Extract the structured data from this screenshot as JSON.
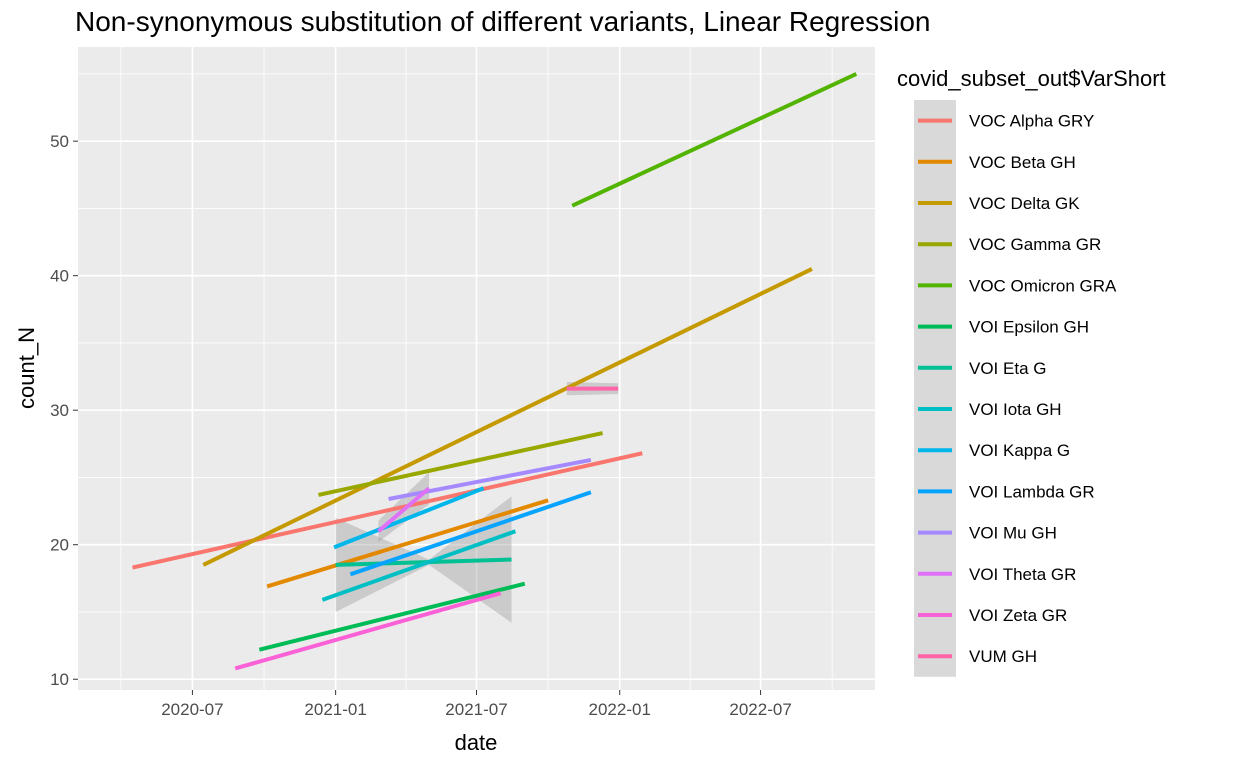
{
  "chart_data": {
    "type": "line",
    "title": "Non-synonymous substitution of different variants, Linear Regression",
    "xlabel": "date",
    "ylabel": "count_N",
    "x_ticks": [
      "2020-07",
      "2021-01",
      "2021-07",
      "2022-01",
      "2022-07"
    ],
    "y_ticks": [
      10,
      20,
      30,
      40,
      50
    ],
    "xlim": [
      "2020-02-05",
      "2022-11-25"
    ],
    "ylim": [
      9.2,
      57.0
    ],
    "grid": true,
    "legend": {
      "title": "covid_subset_out$VarShort",
      "position": "right"
    },
    "series": [
      {
        "name": "VOC Alpha GRY",
        "color": "#F8766D",
        "x": [
          "2020-04-15",
          "2022-01-30"
        ],
        "y": [
          18.3,
          26.8
        ]
      },
      {
        "name": "VOC Beta GH",
        "color": "#E38900",
        "x": [
          "2020-10-05",
          "2021-10-01"
        ],
        "y": [
          16.9,
          23.3
        ]
      },
      {
        "name": "VOC Delta GK",
        "color": "#C49A00",
        "x": [
          "2020-07-15",
          "2022-09-05"
        ],
        "y": [
          18.5,
          40.5
        ]
      },
      {
        "name": "VOC Gamma GR",
        "color": "#99A800",
        "x": [
          "2020-12-10",
          "2021-12-10"
        ],
        "y": [
          23.7,
          28.3
        ]
      },
      {
        "name": "VOC Omicron GRA",
        "color": "#53B400",
        "x": [
          "2021-11-01",
          "2022-11-01"
        ],
        "y": [
          45.2,
          55.0
        ]
      },
      {
        "name": "VOI Epsilon GH",
        "color": "#00BC56",
        "x": [
          "2020-09-25",
          "2021-09-01"
        ],
        "y": [
          12.2,
          17.1
        ]
      },
      {
        "name": "VOI Eta G",
        "color": "#00C094",
        "x": [
          "2021-01-01",
          "2021-08-15"
        ],
        "y": [
          18.5,
          18.9
        ]
      },
      {
        "name": "VOI Iota GH",
        "color": "#00BFC4",
        "x": [
          "2020-12-15",
          "2021-08-20"
        ],
        "y": [
          15.9,
          21.0
        ]
      },
      {
        "name": "VOI Kappa G",
        "color": "#00B6EB",
        "x": [
          "2020-12-30",
          "2021-07-10"
        ],
        "y": [
          19.8,
          24.2
        ]
      },
      {
        "name": "VOI Lambda GR",
        "color": "#06A4FF",
        "x": [
          "2021-01-20",
          "2021-11-25"
        ],
        "y": [
          17.8,
          23.9
        ]
      },
      {
        "name": "VOI Mu GH",
        "color": "#A58AFF",
        "x": [
          "2021-03-10",
          "2021-11-25"
        ],
        "y": [
          23.4,
          26.3
        ]
      },
      {
        "name": "VOI Theta GR",
        "color": "#DF70F8",
        "x": [
          "2021-02-25",
          "2021-05-01"
        ],
        "y": [
          21.0,
          24.2
        ]
      },
      {
        "name": "VOI Zeta GR",
        "color": "#FB61D7",
        "x": [
          "2020-08-25",
          "2021-08-01"
        ],
        "y": [
          10.8,
          16.4
        ]
      },
      {
        "name": "VUM GH",
        "color": "#FF66A8",
        "x": [
          "2021-10-25",
          "2021-12-30"
        ],
        "y": [
          31.6,
          31.6
        ]
      }
    ],
    "confidence_bands": [
      {
        "series": "VOC Beta GH / VOI Eta G",
        "x": [
          "2021-01-01",
          "2021-05-01",
          "2021-08-15"
        ],
        "lower": [
          15.0,
          18.5,
          14.2
        ],
        "upper": [
          22.0,
          18.9,
          23.6
        ]
      },
      {
        "series": "VOI Theta GR",
        "x": [
          "2021-02-25",
          "2021-05-01"
        ],
        "lower": [
          20.2,
          23.0
        ],
        "upper": [
          21.8,
          25.4
        ]
      },
      {
        "series": "VUM GH",
        "x": [
          "2021-10-25",
          "2021-12-30"
        ],
        "lower": [
          31.1,
          31.2
        ],
        "upper": [
          32.1,
          32.0
        ]
      }
    ]
  }
}
